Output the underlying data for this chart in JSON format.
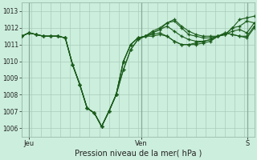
{
  "bg_color": "#cceedd",
  "grid_color_minor": "#aaccbb",
  "grid_color_major": "#99bbaa",
  "line_color": "#1a5c1a",
  "ylim": [
    1005.5,
    1013.5
  ],
  "yticks": [
    1006,
    1007,
    1008,
    1009,
    1010,
    1011,
    1012,
    1013
  ],
  "xlabel": "Pression niveau de la mer( hPa )",
  "day_labels": [
    "Jeu",
    "Ven",
    "S"
  ],
  "day_positions": [
    0.03,
    0.515,
    0.97
  ],
  "n_xgrid": 24,
  "series": [
    [
      1011.5,
      1011.7,
      1011.6,
      1011.5,
      1011.5,
      1011.5,
      1011.4,
      1009.8,
      1008.6,
      1007.2,
      1006.9,
      1006.1,
      1007.0,
      1008.0,
      1009.5,
      1010.7,
      1011.3,
      1011.5,
      1011.7,
      1011.9,
      1012.3,
      1012.5,
      1012.1,
      1011.8,
      1011.6,
      1011.5,
      1011.5,
      1011.5,
      1011.6,
      1012.0,
      1012.5,
      1012.6,
      1012.7
    ],
    [
      1011.5,
      1011.7,
      1011.6,
      1011.5,
      1011.5,
      1011.5,
      1011.4,
      1009.8,
      1008.6,
      1007.2,
      1006.9,
      1006.1,
      1007.0,
      1008.0,
      1009.5,
      1010.7,
      1011.3,
      1011.5,
      1011.8,
      1012.0,
      1012.3,
      1012.4,
      1012.0,
      1011.6,
      1011.5,
      1011.4,
      1011.4,
      1011.5,
      1011.6,
      1012.0,
      1012.1,
      1012.4,
      1012.3
    ],
    [
      1011.5,
      1011.7,
      1011.6,
      1011.5,
      1011.5,
      1011.5,
      1011.4,
      1009.8,
      1008.6,
      1007.2,
      1006.9,
      1006.1,
      1007.0,
      1008.0,
      1010.0,
      1011.0,
      1011.4,
      1011.5,
      1011.7,
      1011.9,
      1012.1,
      1011.8,
      1011.5,
      1011.3,
      1011.2,
      1011.2,
      1011.3,
      1011.5,
      1011.6,
      1011.8,
      1011.9,
      1011.7,
      1012.3
    ],
    [
      1011.5,
      1011.7,
      1011.6,
      1011.5,
      1011.5,
      1011.5,
      1011.4,
      1009.8,
      1008.6,
      1007.2,
      1006.9,
      1006.1,
      1007.0,
      1008.0,
      1010.0,
      1011.0,
      1011.4,
      1011.5,
      1011.6,
      1011.7,
      1011.5,
      1011.2,
      1011.0,
      1011.0,
      1011.0,
      1011.1,
      1011.2,
      1011.5,
      1011.7,
      1011.6,
      1011.5,
      1011.4,
      1012.0
    ],
    [
      1011.5,
      1011.7,
      1011.6,
      1011.5,
      1011.5,
      1011.5,
      1011.4,
      1009.8,
      1008.6,
      1007.2,
      1006.9,
      1006.1,
      1007.0,
      1008.0,
      1010.0,
      1011.0,
      1011.4,
      1011.5,
      1011.5,
      1011.6,
      1011.5,
      1011.2,
      1011.0,
      1011.0,
      1011.1,
      1011.2,
      1011.3,
      1011.5,
      1011.7,
      1011.6,
      1011.5,
      1011.5,
      1012.1
    ]
  ]
}
